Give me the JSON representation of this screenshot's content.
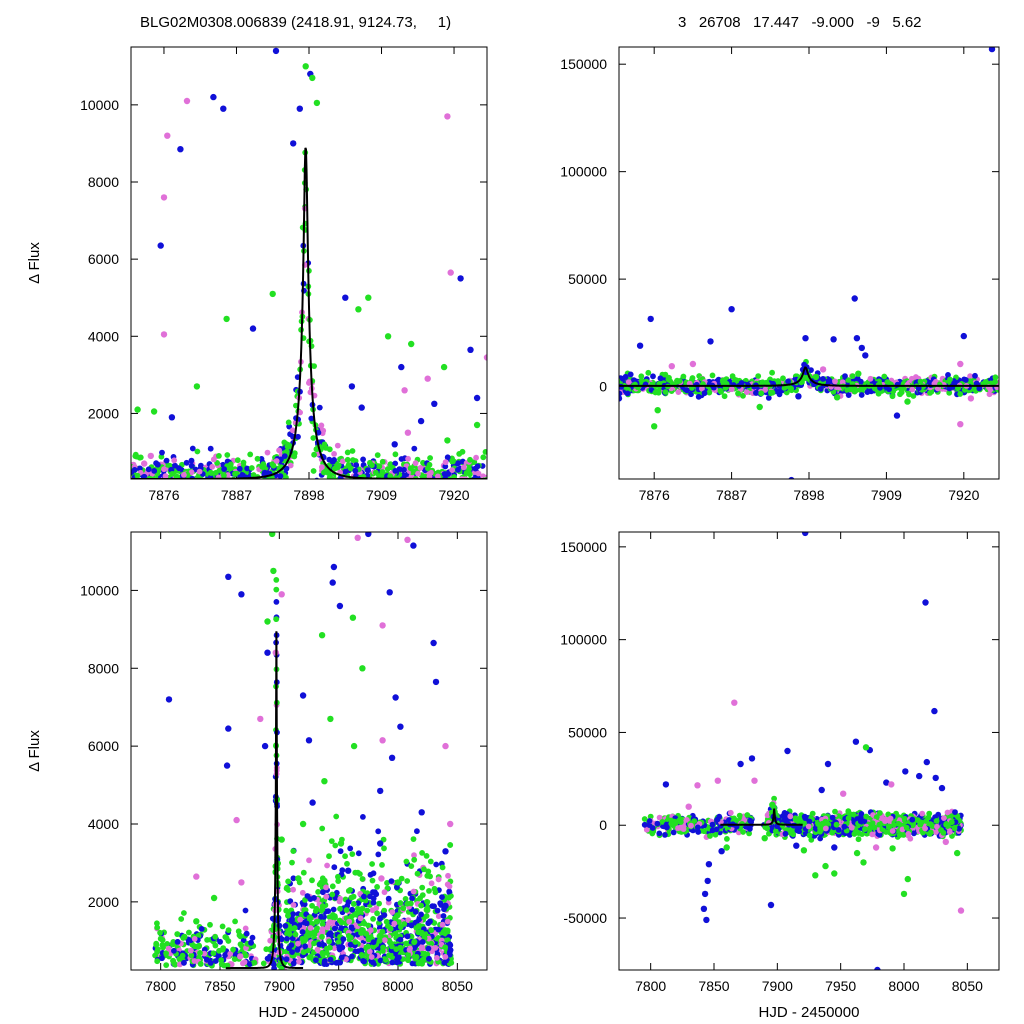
{
  "header": {
    "left_title": "BLG02M0308.006839 (2418.91, 9124.73,     1)",
    "right_title": "3   26708   17.447   -9.000   -9   5.62"
  },
  "colors": {
    "ogle_blue": "#1010d8",
    "green": "#22e022",
    "magenta": "#e070d8",
    "model_line": "#000000"
  },
  "chart_data": [
    {
      "type": "scatter",
      "panel": "top-left",
      "title": "",
      "xlabel": "",
      "ylabel": "Δ Flux",
      "xlim": [
        7871,
        7925
      ],
      "ylim": [
        300,
        11500
      ],
      "xticks": [
        7876,
        7887,
        7898,
        7909,
        7920
      ],
      "yticks": [
        2000,
        4000,
        6000,
        8000,
        10000
      ],
      "model": {
        "t0": 7897.5,
        "fmax": 8950,
        "fbase": 300,
        "tau": 3.1,
        "beta": 0.11
      },
      "series": [
        {
          "color": "blue",
          "points": [
            [
              7875.5,
              6350
            ],
            [
              7878.5,
              8850
            ],
            [
              7883.5,
              10200
            ],
            [
              7885,
              9900
            ],
            [
              7893,
              11400
            ],
            [
              7903.5,
              5000
            ],
            [
              7912,
              3200
            ],
            [
              7921,
              5500
            ],
            [
              7922.5,
              3650
            ],
            [
              7923.5,
              2400
            ],
            [
              7917,
              2250
            ],
            [
              7906,
              2150
            ],
            [
              7904.5,
              2700
            ],
            [
              7895.6,
              9000
            ],
            [
              7896.6,
              9900
            ],
            [
              7898.2,
              10800
            ],
            [
              7889.5,
              4200
            ],
            [
              7877.2,
              1900
            ],
            [
              7915,
              1800
            ],
            [
              7911,
              1200
            ]
          ]
        },
        {
          "color": "green",
          "points": [
            [
              7898.5,
              10700
            ],
            [
              7897.5,
              11000
            ],
            [
              7899.2,
              10050
            ],
            [
              7892.5,
              5100
            ],
            [
              7907,
              5000
            ],
            [
              7910,
              4000
            ],
            [
              7913.5,
              3800
            ],
            [
              7918.5,
              3200
            ],
            [
              7885.5,
              4450
            ],
            [
              7881,
              2700
            ],
            [
              7872,
              2100
            ],
            [
              7874.5,
              2050
            ],
            [
              7900.6,
              500
            ],
            [
              7905.5,
              4700
            ],
            [
              7919,
              1300
            ],
            [
              7923.5,
              1700
            ]
          ]
        },
        {
          "color": "magenta",
          "points": [
            [
              7879.5,
              10100
            ],
            [
              7876.5,
              9200
            ],
            [
              7876,
              7600
            ],
            [
              7876,
              4050
            ],
            [
              7919,
              9700
            ],
            [
              7919.5,
              5650
            ],
            [
              7925,
              3450
            ],
            [
              7916,
              2900
            ],
            [
              7912.5,
              2600
            ],
            [
              7913,
              1500
            ],
            [
              7873,
              700
            ],
            [
              7874,
              900
            ]
          ]
        }
      ]
    },
    {
      "type": "scatter",
      "panel": "top-right",
      "title": "",
      "xlabel": "",
      "ylabel": "",
      "xlim": [
        7871,
        7925
      ],
      "ylim": [
        -43000,
        158000
      ],
      "xticks": [
        7876,
        7887,
        7898,
        7909,
        7920
      ],
      "yticks": [
        0,
        50000,
        100000,
        150000
      ],
      "model": {
        "t0": 7897.5,
        "fmax": 8950,
        "fbase": 300,
        "tau": 3.1,
        "beta": 0.11
      },
      "series": [
        {
          "color": "blue",
          "points": [
            [
              7924,
              157000
            ],
            [
              7875.5,
              31500
            ],
            [
              7874,
              19000
            ],
            [
              7887,
              36000
            ],
            [
              7884,
              21000
            ],
            [
              7897.5,
              22500
            ],
            [
              7901.5,
              22000
            ],
            [
              7904.5,
              41000
            ],
            [
              7904.8,
              22500
            ],
            [
              7905.5,
              18000
            ],
            [
              7906,
              14500
            ],
            [
              7920,
              23500
            ],
            [
              7895.5,
              -43500
            ],
            [
              7910.5,
              -13500
            ],
            [
              7871,
              -5500
            ],
            [
              7896.5,
              -4500
            ]
          ]
        },
        {
          "color": "green",
          "points": [
            [
              7876,
              -18500
            ],
            [
              7876.5,
              -11000
            ],
            [
              7891,
              -9500
            ],
            [
              7902,
              -5000
            ],
            [
              7912,
              -7000
            ],
            [
              7899,
              4500
            ],
            [
              7905,
              6000
            ]
          ]
        },
        {
          "color": "magenta",
          "points": [
            [
              7878.5,
              9500
            ],
            [
              7881.5,
              10500
            ],
            [
              7919.5,
              -17500
            ],
            [
              7921,
              -5500
            ],
            [
              7900,
              8000
            ],
            [
              7919.5,
              10500
            ]
          ]
        }
      ]
    },
    {
      "type": "scatter",
      "panel": "bottom-left",
      "title": "",
      "xlabel": "HJD - 2450000",
      "ylabel": "Δ Flux",
      "xlim": [
        7775,
        8075
      ],
      "ylim": [
        250,
        11500
      ],
      "xticks": [
        7800,
        7850,
        7900,
        7950,
        8000,
        8050
      ],
      "yticks": [
        2000,
        4000,
        6000,
        8000,
        10000
      ],
      "model": {
        "t0": 7897.5,
        "fmax": 8950,
        "fbase": 300,
        "tau": 3.1,
        "beta": 0.11
      },
      "series": [
        {
          "color": "blue",
          "points": [
            [
              7807,
              7200
            ],
            [
              7857,
              10350
            ],
            [
              7868,
              9900
            ],
            [
              7946,
              10600
            ],
            [
              7945,
              10200
            ],
            [
              7951,
              9600
            ],
            [
              7975,
              11450
            ],
            [
              7993,
              9950
            ],
            [
              8013,
              11150
            ],
            [
              8030,
              8650
            ],
            [
              8032,
              7650
            ],
            [
              8002,
              6500
            ],
            [
              7998,
              7250
            ],
            [
              7857,
              6450
            ],
            [
              7856,
              5500
            ],
            [
              7920,
              7300
            ],
            [
              7925,
              6150
            ],
            [
              7928,
              4550
            ],
            [
              7958,
              2800
            ],
            [
              7985,
              3500
            ],
            [
              8020,
              4300
            ],
            [
              8040,
              3300
            ],
            [
              8040,
              1900
            ],
            [
              7985,
              4850
            ],
            [
              7995,
              5700
            ],
            [
              7888,
              6000
            ],
            [
              7890,
              8400
            ]
          ]
        },
        {
          "color": "green",
          "points": [
            [
              7894,
              11450
            ],
            [
              7895,
              10500
            ],
            [
              7890,
              9200
            ],
            [
              7943,
              6700
            ],
            [
              7952,
              3500
            ],
            [
              7970,
              8000
            ],
            [
              7962,
              9300
            ],
            [
              7936,
              8850
            ],
            [
              7820,
              1100
            ],
            [
              7830,
              1500
            ],
            [
              7845,
              2100
            ],
            [
              7916,
              2600
            ],
            [
              7920,
              4000
            ],
            [
              7938,
              5100
            ],
            [
              7963,
              6000
            ],
            [
              7902,
              3600
            ],
            [
              8000,
              2500
            ],
            [
              8020,
              1200
            ]
          ]
        },
        {
          "color": "magenta",
          "points": [
            [
              7966,
              11350
            ],
            [
              7987,
              9100
            ],
            [
              8008,
              11300
            ],
            [
              7902,
              9900
            ],
            [
              7897,
              8400
            ],
            [
              7884,
              6700
            ],
            [
              7868,
              2500
            ],
            [
              7864,
              4100
            ],
            [
              7987,
              6150
            ],
            [
              8040,
              6000
            ],
            [
              8044,
              4000
            ],
            [
              7830,
              2650
            ],
            [
              7867,
              600
            ],
            [
              7986,
              2600
            ]
          ]
        }
      ]
    },
    {
      "type": "scatter",
      "panel": "bottom-right",
      "title": "",
      "xlabel": "HJD - 2450000",
      "ylabel": "",
      "xlim": [
        7775,
        8075
      ],
      "ylim": [
        -78000,
        158000
      ],
      "xticks": [
        7800,
        7850,
        7900,
        7950,
        8000,
        8050
      ],
      "yticks": [
        -50000,
        0,
        50000,
        100000,
        150000
      ],
      "model": {
        "t0": 7897.5,
        "fmax": 8950,
        "fbase": 300,
        "tau": 3.1,
        "beta": 0.11
      },
      "series": [
        {
          "color": "blue",
          "points": [
            [
              7922,
              157500
            ],
            [
              8017,
              120000
            ],
            [
              8024,
              61500
            ],
            [
              7895,
              -43000
            ],
            [
              7979,
              -78000
            ],
            [
              7844,
              -51000
            ],
            [
              7842,
              -45000
            ],
            [
              7843,
              -37000
            ],
            [
              7845,
              -30000
            ],
            [
              7846,
              -21000
            ],
            [
              7856,
              -14000
            ],
            [
              7812,
              22000
            ],
            [
              7871,
              33000
            ],
            [
              7880,
              36000
            ],
            [
              7908,
              40000
            ],
            [
              7940,
              33000
            ],
            [
              7962,
              45000
            ],
            [
              7973,
              40500
            ],
            [
              8001,
              29000
            ],
            [
              8012,
              26500
            ],
            [
              8018,
              34000
            ],
            [
              8025,
              25500
            ],
            [
              8030,
              20000
            ],
            [
              7935,
              19000
            ],
            [
              7986,
              23000
            ],
            [
              7915,
              -11000
            ],
            [
              7945,
              -12000
            ]
          ]
        },
        {
          "color": "green",
          "points": [
            [
              7970,
              42000
            ],
            [
              7930,
              -27000
            ],
            [
              8000,
              -37000
            ],
            [
              8003,
              -29000
            ],
            [
              7991,
              -12500
            ],
            [
              8042,
              -15000
            ],
            [
              7938,
              -22000
            ],
            [
              7945,
              -26000
            ],
            [
              7963,
              -15000
            ],
            [
              7921,
              -13500
            ],
            [
              7896,
              11000
            ],
            [
              7968,
              -20000
            ],
            [
              7890,
              -7000
            ],
            [
              7860,
              -12000
            ]
          ]
        },
        {
          "color": "magenta",
          "points": [
            [
              7866,
              66000
            ],
            [
              7853,
              24000
            ],
            [
              7837,
              21500
            ],
            [
              7882,
              24000
            ],
            [
              7952,
              17000
            ],
            [
              7978,
              -12000
            ],
            [
              8033,
              -9000
            ],
            [
              8045,
              -46000
            ],
            [
              7990,
              22000
            ],
            [
              7830,
              10000
            ]
          ]
        }
      ]
    }
  ]
}
